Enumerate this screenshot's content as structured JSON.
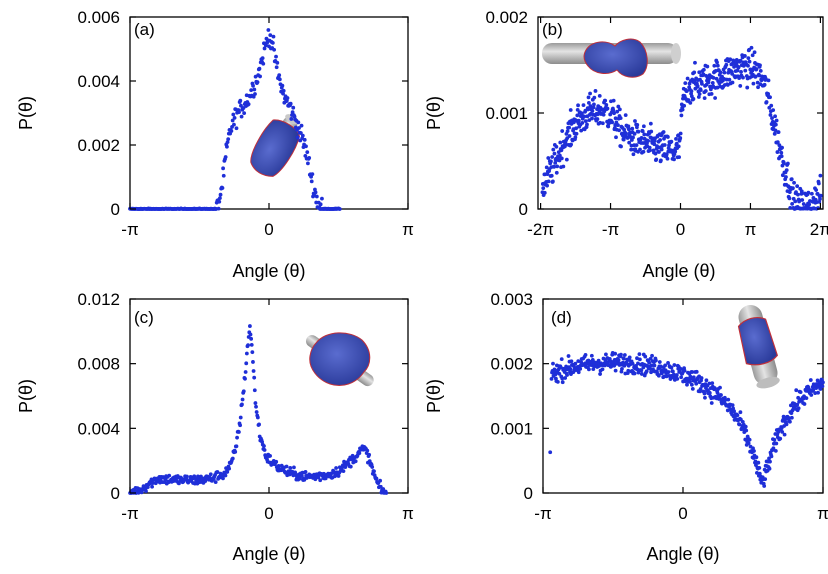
{
  "figure": {
    "point_color": "#1f2fd8",
    "axis_color": "#000000",
    "inset_icon": "polymer-on-cylinder-inset-image"
  },
  "chart_data": [
    {
      "type": "scatter",
      "panel_label": "(a)",
      "xlabel": "Angle (θ)",
      "ylabel": "P(θ)",
      "xlim": [
        -3.14159,
        3.14159
      ],
      "ylim": [
        0,
        0.006
      ],
      "x_ticks": [
        -3.14159,
        0,
        3.14159
      ],
      "x_tick_labels": [
        "-π",
        "0",
        "π"
      ],
      "y_ticks": [
        0,
        0.002,
        0.004,
        0.006
      ],
      "y_tick_labels": [
        "0",
        "0.002",
        "0.004",
        "0.006"
      ],
      "grid": false,
      "legend": "none",
      "inset": "tilted polymer-coated cylinder",
      "curve": [
        [
          -3.14159,
          0
        ],
        [
          -1.2,
          0
        ],
        [
          -1.15,
          0.0001
        ],
        [
          -1.05,
          0.0008
        ],
        [
          -0.95,
          0.0019
        ],
        [
          -0.85,
          0.0026
        ],
        [
          -0.75,
          0.0029
        ],
        [
          -0.6,
          0.0032
        ],
        [
          -0.45,
          0.0035
        ],
        [
          -0.3,
          0.004
        ],
        [
          -0.2,
          0.0044
        ],
        [
          -0.1,
          0.005
        ],
        [
          0,
          0.0055
        ],
        [
          0.1,
          0.005
        ],
        [
          0.2,
          0.0042
        ],
        [
          0.35,
          0.0035
        ],
        [
          0.5,
          0.0031
        ],
        [
          0.65,
          0.0026
        ],
        [
          0.8,
          0.002
        ],
        [
          0.9,
          0.0014
        ],
        [
          1.0,
          0.0007
        ],
        [
          1.1,
          0.0002
        ],
        [
          1.2,
          0
        ],
        [
          1.3,
          0
        ],
        [
          1.5,
          0
        ],
        [
          1.6,
          0
        ]
      ],
      "noise": 0.00016,
      "count": 330
    },
    {
      "type": "scatter",
      "panel_label": "(b)",
      "xlabel": "Angle (θ)",
      "ylabel": "P(θ)",
      "xlim": [
        -6.4,
        6.4
      ],
      "ylim": [
        0,
        0.002
      ],
      "x_ticks": [
        -6.28318,
        -3.14159,
        0,
        3.14159,
        6.28318
      ],
      "x_tick_labels": [
        "-2π",
        "-π",
        "0",
        "π",
        "2π"
      ],
      "y_ticks": [
        0,
        0.001,
        0.002
      ],
      "y_tick_labels": [
        "0",
        "0.001",
        "0.002"
      ],
      "grid": false,
      "legend": "none",
      "inset": "horizontal cylinder with polymer coil",
      "curve": [
        [
          -6.2,
          0.00025
        ],
        [
          -5.8,
          0.0004
        ],
        [
          -5.2,
          0.0007
        ],
        [
          -4.6,
          0.00092
        ],
        [
          -4.0,
          0.00102
        ],
        [
          -3.4,
          0.00103
        ],
        [
          -3.0,
          0.00095
        ],
        [
          -2.6,
          0.0008
        ],
        [
          -2.0,
          0.00072
        ],
        [
          -1.5,
          0.00068
        ],
        [
          -0.9,
          0.00063
        ],
        [
          -0.3,
          0.0006
        ],
        [
          -0.05,
          0.00063
        ],
        [
          0.1,
          0.0011
        ],
        [
          0.4,
          0.00128
        ],
        [
          1.0,
          0.00132
        ],
        [
          1.6,
          0.00137
        ],
        [
          2.2,
          0.00143
        ],
        [
          2.8,
          0.00148
        ],
        [
          3.3,
          0.00147
        ],
        [
          3.7,
          0.00135
        ],
        [
          4.0,
          0.0011
        ],
        [
          4.3,
          0.0008
        ],
        [
          4.6,
          0.0005
        ],
        [
          4.9,
          0.00025
        ],
        [
          5.1,
          8e-05
        ],
        [
          5.3,
          3e-05
        ],
        [
          5.7,
          4e-05
        ],
        [
          6.1,
          0.0001
        ],
        [
          6.3,
          0.00015
        ]
      ],
      "noise": 9e-05,
      "count": 720
    },
    {
      "type": "scatter",
      "panel_label": "(c)",
      "xlabel": "Angle (θ)",
      "ylabel": "P(θ)",
      "xlim": [
        -3.14159,
        3.14159
      ],
      "ylim": [
        0,
        0.012
      ],
      "x_ticks": [
        -3.14159,
        0,
        3.14159
      ],
      "x_tick_labels": [
        "-π",
        "0",
        "π"
      ],
      "y_ticks": [
        0,
        0.004,
        0.008,
        0.012
      ],
      "y_tick_labels": [
        "0",
        "0.004",
        "0.008",
        "0.012"
      ],
      "grid": false,
      "legend": "none",
      "inset": "polymer blob on crossed cylinder",
      "curve": [
        [
          -3.14,
          0
        ],
        [
          -2.9,
          0.0002
        ],
        [
          -2.7,
          0.0006
        ],
        [
          -2.5,
          0.0009
        ],
        [
          -2.3,
          0.00085
        ],
        [
          -2.0,
          0.0008
        ],
        [
          -1.6,
          0.0008
        ],
        [
          -1.3,
          0.0009
        ],
        [
          -1.0,
          0.0012
        ],
        [
          -0.85,
          0.0018
        ],
        [
          -0.75,
          0.0028
        ],
        [
          -0.65,
          0.0045
        ],
        [
          -0.55,
          0.007
        ],
        [
          -0.48,
          0.0092
        ],
        [
          -0.43,
          0.0103
        ],
        [
          -0.38,
          0.0088
        ],
        [
          -0.3,
          0.0055
        ],
        [
          -0.2,
          0.0035
        ],
        [
          -0.05,
          0.0022
        ],
        [
          0.2,
          0.0016
        ],
        [
          0.5,
          0.0012
        ],
        [
          0.9,
          0.001
        ],
        [
          1.3,
          0.0011
        ],
        [
          1.6,
          0.0014
        ],
        [
          1.9,
          0.0021
        ],
        [
          2.1,
          0.0027
        ],
        [
          2.2,
          0.0026
        ],
        [
          2.32,
          0.0016
        ],
        [
          2.45,
          0.0006
        ],
        [
          2.55,
          0.0001
        ],
        [
          2.65,
          0
        ]
      ],
      "noise": 0.00016,
      "count": 420
    },
    {
      "type": "scatter",
      "panel_label": "(d)",
      "xlabel": "Angle (θ)",
      "ylabel": "P(θ)",
      "xlim": [
        -3.14159,
        3.14159
      ],
      "ylim": [
        0,
        0.003
      ],
      "x_ticks": [
        -3.14159,
        0,
        3.14159
      ],
      "x_tick_labels": [
        "-π",
        "0",
        "π"
      ],
      "y_ticks": [
        0,
        0.001,
        0.002,
        0.003
      ],
      "y_tick_labels": [
        "0",
        "0.001",
        "0.002",
        "0.003"
      ],
      "grid": false,
      "legend": "none",
      "inset": "vertical cylinder with polymer coating",
      "curve": [
        [
          -2.95,
          0.00185
        ],
        [
          -2.5,
          0.00195
        ],
        [
          -2.0,
          0.002
        ],
        [
          -1.5,
          0.00202
        ],
        [
          -1.0,
          0.002
        ],
        [
          -0.5,
          0.00194
        ],
        [
          0,
          0.00183
        ],
        [
          0.4,
          0.0017
        ],
        [
          0.8,
          0.0015
        ],
        [
          1.1,
          0.00128
        ],
        [
          1.3,
          0.00105
        ],
        [
          1.5,
          0.00075
        ],
        [
          1.62,
          0.0005
        ],
        [
          1.72,
          0.00025
        ],
        [
          1.78,
          0.00018
        ],
        [
          1.86,
          0.0003
        ],
        [
          1.98,
          0.0006
        ],
        [
          2.2,
          0.001
        ],
        [
          2.5,
          0.00135
        ],
        [
          2.8,
          0.00155
        ],
        [
          3.14,
          0.0017
        ]
      ],
      "noise": 7.5e-05,
      "count": 560,
      "outlier": [
        -2.98,
        0.00063
      ]
    }
  ]
}
